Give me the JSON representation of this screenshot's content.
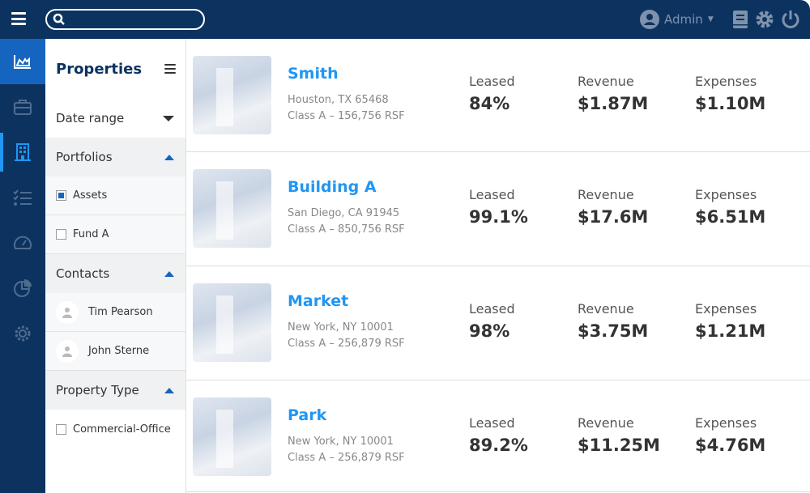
{
  "header": {
    "user": "Admin",
    "search_placeholder": ""
  },
  "colors": {
    "navy": "#0c3360",
    "accent": "#1565c0",
    "link": "#2196f3"
  },
  "rail": [
    "chart-icon",
    "briefcase-icon",
    "building-icon",
    "checklist-icon",
    "gauge-icon",
    "pie-chart-icon",
    "gear-icon"
  ],
  "filters": {
    "title": "Properties",
    "date_range": "Date range",
    "portfolios": "Portfolios",
    "assets": "Assets",
    "fund_a": "Fund A",
    "contacts": "Contacts",
    "contact1": "Tim Pearson",
    "contact2": "John Sterne",
    "property_type": "Property Type",
    "commercial_office": "Commercial-Office"
  },
  "labels": {
    "leased": "Leased",
    "revenue": "Revenue",
    "expenses": "Expenses"
  },
  "properties": [
    {
      "name": "Smith",
      "location": "Houston, TX 65468",
      "class": "Class A – 156,756 RSF",
      "leased": "84%",
      "revenue": "$1.87M",
      "expenses": "$1.10M"
    },
    {
      "name": "Building A",
      "location": "San Diego, CA 91945",
      "class": "Class A – 850,756 RSF",
      "leased": "99.1%",
      "revenue": "$17.6M",
      "expenses": "$6.51M"
    },
    {
      "name": "Market",
      "location": "New York, NY 10001",
      "class": "Class A – 256,879 RSF",
      "leased": "98%",
      "revenue": "$3.75M",
      "expenses": "$1.21M"
    },
    {
      "name": "Park",
      "location": "New York, NY 10001",
      "class": "Class A – 256,879 RSF",
      "leased": "89.2%",
      "revenue": "$11.25M",
      "expenses": "$4.76M"
    }
  ]
}
